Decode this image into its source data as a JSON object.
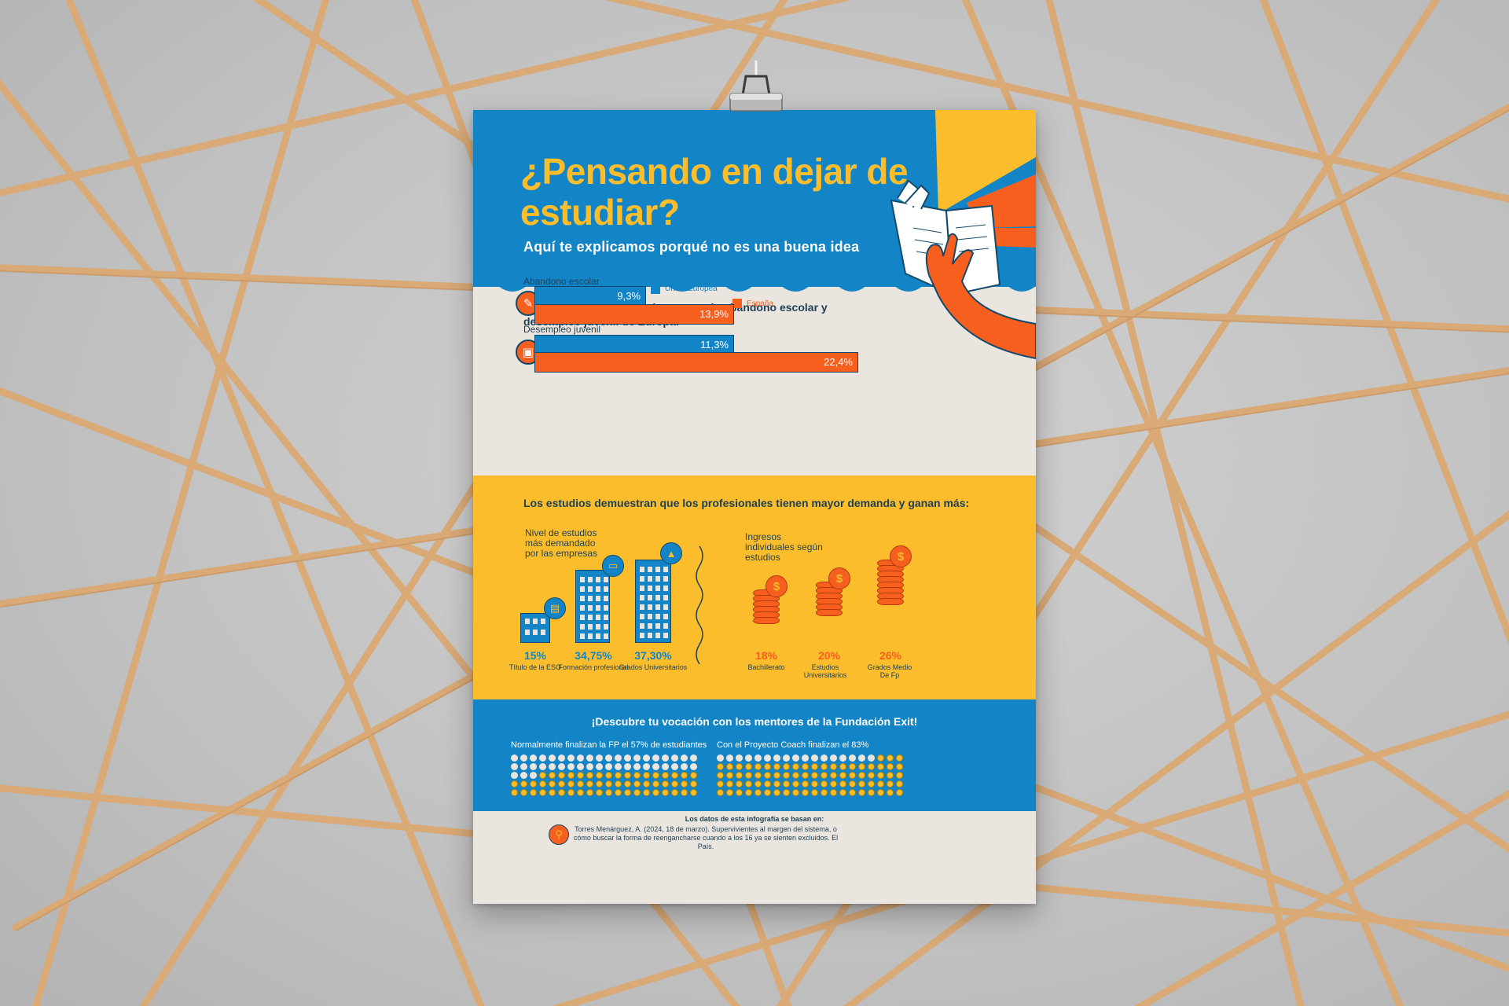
{
  "header": {
    "title": "¿Pensando en dejar de estudiar?",
    "subtitle": "Aquí te explicamos porqué no es una buena idea"
  },
  "europe": {
    "heading": "España es uno de los países con más abandono escolar y desempleo juvenil de Europa:",
    "legend": [
      {
        "label": "Unión Europea",
        "color": "#1385c7"
      },
      {
        "label": "España",
        "color": "#f65f1e"
      }
    ],
    "groups": [
      {
        "label": "Abandono escolar",
        "icon": "document-x-icon",
        "eu": "9,3%",
        "es": "13,9%"
      },
      {
        "label": "Desempleo juvenil",
        "icon": "briefcase-icon",
        "eu": "11,3%",
        "es": "22,4%"
      }
    ]
  },
  "chart_data": {
    "type": "bar",
    "categories": [
      "Abandono escolar",
      "Desempleo juvenil"
    ],
    "series": [
      {
        "name": "Unión Europea",
        "values": [
          9.3,
          11.3
        ]
      },
      {
        "name": "España",
        "values": [
          13.9,
          22.4
        ]
      }
    ]
  },
  "studies": {
    "heading": "Los estudios demuestran que los profesionales tienen mayor demanda y ganan más:",
    "demand": {
      "caption": "Nivel de estudios más demandado por las empresas",
      "items": [
        {
          "pct": "15%",
          "label": "Título de la ESO",
          "value": 15,
          "icon": "book-icon"
        },
        {
          "pct": "34,75%",
          "label": "Formación profesional",
          "value": 34.75,
          "icon": "certificate-icon"
        },
        {
          "pct": "37,30%",
          "label": "Grados Universitarios",
          "value": 37.3,
          "icon": "graduation-cap-icon"
        }
      ]
    },
    "income": {
      "caption": "Ingresos individuales según estudios",
      "items": [
        {
          "pct": "18%",
          "label": "Bachillerato",
          "value": 18,
          "icon": "dollar-icon"
        },
        {
          "pct": "20%",
          "label": "Estudios Universitarios",
          "value": 20,
          "icon": "dollar-icon"
        },
        {
          "pct": "26%",
          "label": "Grados Medio De Fp",
          "value": 26,
          "icon": "dollar-icon"
        }
      ]
    }
  },
  "vocation": {
    "heading": "¡Descubre tu vocación con los mentores de la Fundación Exit!",
    "left": {
      "caption": "Normalmente finalizan la FP el 57% de estudiantes",
      "filled": 57,
      "total": 100
    },
    "right": {
      "caption": "Con el Proyecto Coach finalizan el 83%",
      "filled": 83,
      "total": 100
    }
  },
  "footer": {
    "title": "Los datos de esta infografía se basan en:",
    "citation": "Torres Menárguez, A. (2024, 18 de marzo). Supervivientes al margen del sistema, o cómo buscar la forma de reengancharse cuando a los 16 ya se sienten excluidos. El País.",
    "icon": "magnifier-icon"
  },
  "colors": {
    "blue": "#1385c7",
    "orange": "#f65f1e",
    "yellow": "#fbbd2c",
    "cream": "#eae6df",
    "dark": "#1d3f55"
  }
}
